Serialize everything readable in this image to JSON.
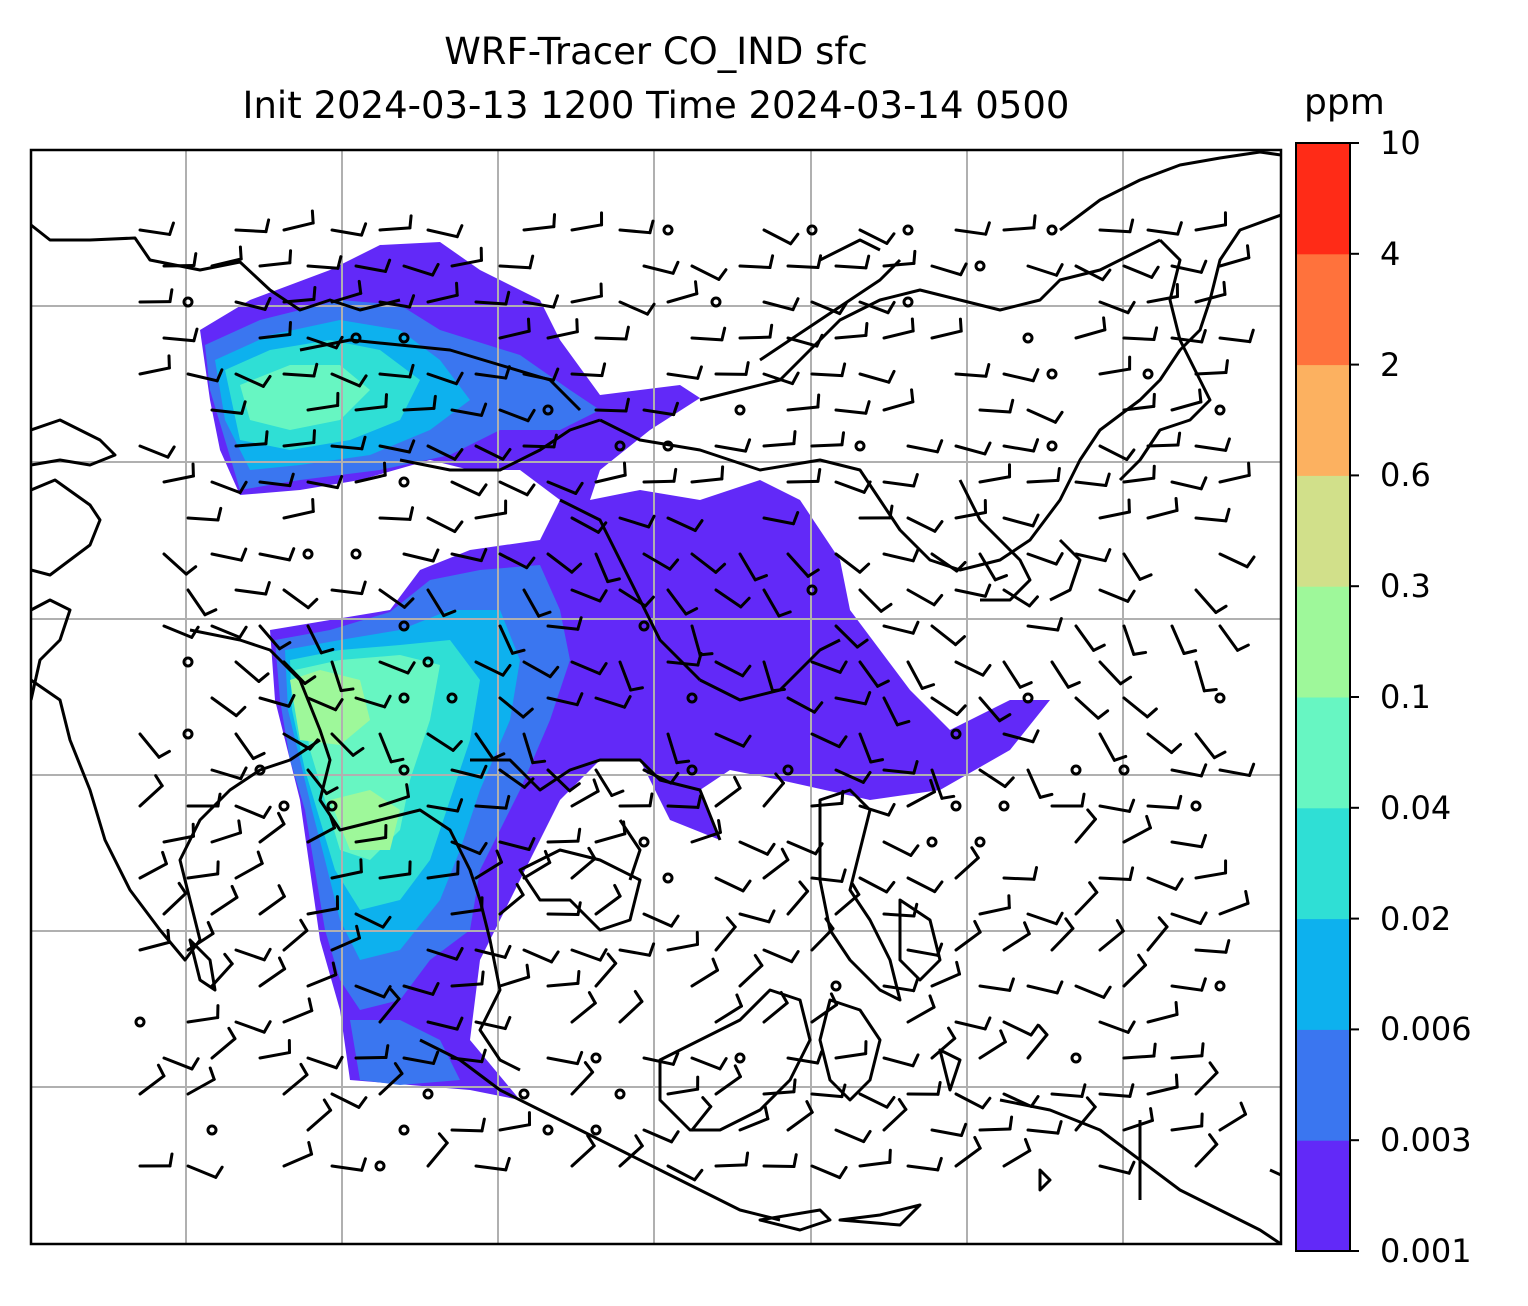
{
  "title": {
    "line1": "WRF-Tracer CO_IND sfc",
    "line2": "Init 2024-03-13 1200 Time 2024-03-14 0500"
  },
  "colorbar": {
    "unit": "ppm",
    "levels": [
      "0.001",
      "0.003",
      "0.006",
      "0.02",
      "0.04",
      "0.1",
      "0.3",
      "0.6",
      "2",
      "4",
      "10"
    ],
    "colors": [
      "#6229f8",
      "#3a76f0",
      "#0db1ee",
      "#2fdfd5",
      "#67f6c2",
      "#9ef89a",
      "#d1e08a",
      "#fcb160",
      "#ff723c",
      "#ff2b17"
    ]
  },
  "map": {
    "projection": "lat-lon",
    "gridlines": true,
    "coastlines": true,
    "overlay": "wind-barbs",
    "field": "CO_IND tracer concentration"
  }
}
